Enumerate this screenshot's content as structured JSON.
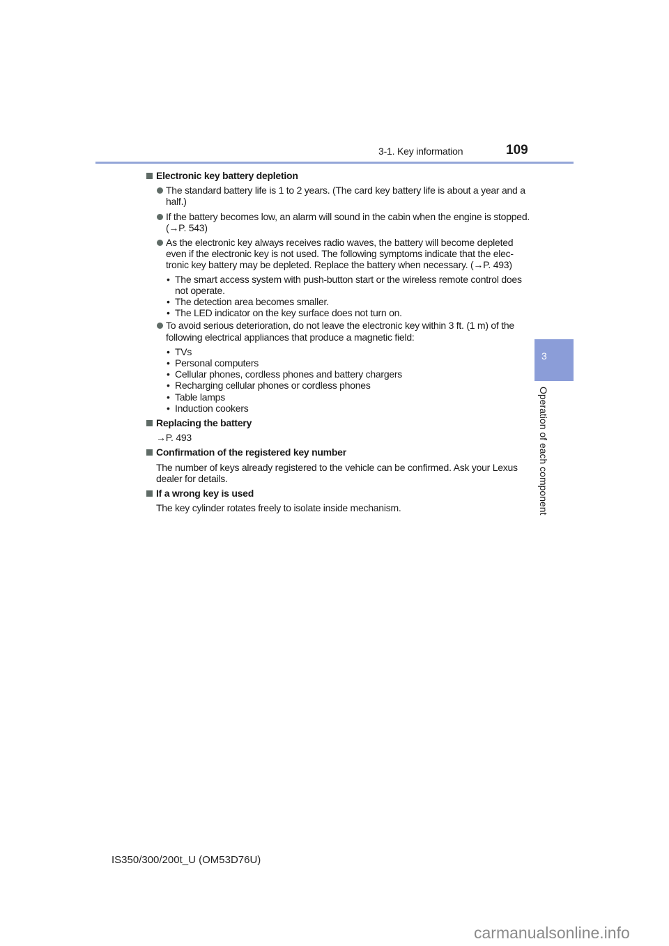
{
  "header": {
    "section": "3-1. Key information",
    "page_number": "109"
  },
  "side_tab": {
    "chapter_number": "3",
    "chapter_title": "Operation of each component"
  },
  "sections": [
    {
      "title": "Electronic key battery depletion",
      "bullets": [
        [
          "The standard battery life is 1 to 2 years. (The card key battery life is about a year and a",
          "half.)"
        ],
        [
          "If the battery becomes low, an alarm will sound in the cabin when the engine is stopped.",
          "(→P. 543)"
        ],
        [
          "As the electronic key always receives radio waves, the battery will become depleted",
          "even if the electronic key is not used. The following symptoms indicate that the elec-",
          "tronic key battery may be depleted. Replace the battery when necessary. (→P. 493)"
        ],
        [
          "To avoid serious deterioration, do not leave the electronic key within 3 ft. (1 m) of the",
          "following electrical appliances that produce a magnetic field:"
        ]
      ],
      "symptoms": [
        [
          "The smart access system with push-button start or the wireless remote control does",
          "not operate."
        ],
        [
          "The detection area becomes smaller."
        ],
        [
          "The LED indicator on the key surface does not turn on."
        ]
      ],
      "appliances": [
        "TVs",
        "Personal computers",
        "Cellular phones, cordless phones and battery chargers",
        "Recharging cellular phones or cordless phones",
        "Table lamps",
        "Induction cookers"
      ]
    },
    {
      "title": "Replacing the battery",
      "text": [
        "→P. 493"
      ]
    },
    {
      "title": "Confirmation of the registered key number",
      "text": [
        "The number of keys already registered to the vehicle can be confirmed. Ask your Lexus",
        "dealer for details."
      ]
    },
    {
      "title": "If a wrong key is used",
      "text": [
        "The key cylinder rotates freely to isolate inside mechanism."
      ]
    }
  ],
  "sub_bullet_glyph": "•",
  "footer": "IS350/300/200t_U (OM53D76U)",
  "watermark": "carmanualsonline.info",
  "colors": {
    "accent": "#94a6d8",
    "tab": "#8b9dd8",
    "bullet": "#5f6b66"
  }
}
